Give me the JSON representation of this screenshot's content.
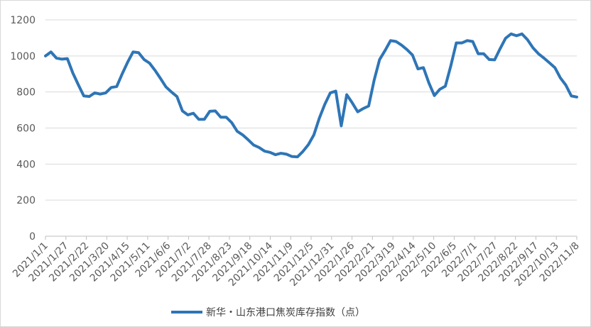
{
  "chart_data": {
    "type": "line",
    "title": "",
    "xlabel": "",
    "ylabel": "",
    "ylim": [
      0,
      1200
    ],
    "yticks": [
      "0",
      "200",
      "400",
      "600",
      "800",
      "1000",
      "1200"
    ],
    "grid": "horizontal",
    "legend_position": "bottom",
    "x_tick_labels": [
      "2021/1/1",
      "2021/1/27",
      "2021/2/22",
      "2021/3/20",
      "2021/4/15",
      "2021/5/11",
      "2021/6/6",
      "2021/7/2",
      "2021/7/28",
      "2021/8/23",
      "2021/9/18",
      "2021/10/14",
      "2021/11/9",
      "2021/12/5",
      "2021/12/31",
      "2022/1/26",
      "2022/2/21",
      "2022/3/19",
      "2022/4/14",
      "2022/5/10",
      "2022/6/5",
      "2022/7/1",
      "2022/7/27",
      "2022/8/22",
      "2022/9/17",
      "2022/10/13",
      "2022/11/8"
    ],
    "colors": {
      "series": "#2e75b6",
      "grid": "#d9d9d9",
      "axis": "#bfbfbf"
    },
    "series": [
      {
        "name": "新华・山东港口焦炭库存指数（点）",
        "values": [
          1000,
          1022,
          988,
          982,
          985,
          905,
          840,
          778,
          775,
          795,
          788,
          795,
          825,
          830,
          900,
          965,
          1022,
          1018,
          980,
          960,
          920,
          875,
          828,
          800,
          775,
          695,
          673,
          682,
          648,
          648,
          693,
          695,
          660,
          660,
          630,
          582,
          562,
          535,
          506,
          492,
          472,
          465,
          452,
          460,
          455,
          442,
          440,
          470,
          508,
          562,
          655,
          732,
          795,
          805,
          612,
          785,
          740,
          690,
          708,
          722,
          865,
          980,
          1030,
          1085,
          1080,
          1060,
          1035,
          1005,
          928,
          935,
          850,
          780,
          815,
          832,
          945,
          1072,
          1072,
          1085,
          1080,
          1012,
          1012,
          980,
          978,
          1040,
          1098,
          1122,
          1112,
          1122,
          1090,
          1045,
          1012,
          988,
          962,
          935,
          878,
          838,
          778,
          772
        ]
      }
    ]
  }
}
